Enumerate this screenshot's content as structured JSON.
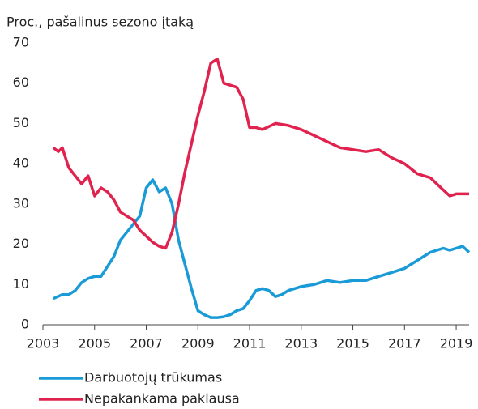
{
  "chart_data": {
    "type": "line",
    "title": "Proc., pašalinus sezono įtaką",
    "xlim": [
      2003,
      2019.5
    ],
    "xticks": [
      2003,
      2005,
      2007,
      2009,
      2011,
      2013,
      2015,
      2017,
      2019
    ],
    "ylim": [
      0,
      70
    ],
    "yticks": [
      0,
      10,
      20,
      30,
      40,
      50,
      60,
      70
    ],
    "grid": false,
    "legend": "bottom",
    "series": [
      {
        "name": "Darbuotojų trūkumas",
        "color": "#1a9ad6",
        "x": [
          2003.4,
          2003.75,
          2004,
          2004.25,
          2004.5,
          2004.75,
          2005,
          2005.25,
          2005.5,
          2005.75,
          2006,
          2006.25,
          2006.5,
          2006.75,
          2007,
          2007.25,
          2007.5,
          2007.75,
          2008,
          2008.25,
          2008.5,
          2008.75,
          2009,
          2009.25,
          2009.5,
          2009.75,
          2010,
          2010.25,
          2010.5,
          2010.75,
          2011,
          2011.25,
          2011.5,
          2011.75,
          2012,
          2012.25,
          2012.5,
          2012.75,
          2013,
          2013.5,
          2014,
          2014.5,
          2015,
          2015.5,
          2016,
          2016.5,
          2017,
          2017.5,
          2018,
          2018.25,
          2018.5,
          2018.75,
          2019,
          2019.25,
          2019.5
        ],
        "values": [
          6.5,
          7.5,
          7.5,
          8.5,
          10.5,
          11.5,
          12,
          12,
          14.5,
          17,
          21,
          23,
          25,
          27,
          34,
          36,
          33,
          34,
          30,
          21,
          15,
          9,
          3.5,
          2.5,
          1.8,
          1.8,
          2,
          2.5,
          3.5,
          4,
          6,
          8.5,
          9,
          8.5,
          7,
          7.5,
          8.5,
          9,
          9.5,
          10,
          11,
          10.5,
          11,
          11,
          12,
          13,
          14,
          16,
          18,
          18.5,
          19,
          18.5,
          19,
          19.5,
          18
        ]
      },
      {
        "name": "Nepakankama paklausa",
        "color": "#e0234e",
        "x": [
          2003.4,
          2003.6,
          2003.75,
          2004,
          2004.25,
          2004.5,
          2004.75,
          2005,
          2005.25,
          2005.5,
          2005.75,
          2006,
          2006.25,
          2006.5,
          2006.75,
          2007,
          2007.25,
          2007.5,
          2007.75,
          2008,
          2008.25,
          2008.5,
          2008.75,
          2009,
          2009.25,
          2009.5,
          2009.75,
          2010,
          2010.25,
          2010.5,
          2010.75,
          2011,
          2011.25,
          2011.5,
          2012,
          2012.5,
          2013,
          2013.5,
          2014,
          2014.5,
          2015,
          2015.5,
          2016,
          2016.5,
          2017,
          2017.5,
          2018,
          2018.5,
          2018.75,
          2019,
          2019.25,
          2019.5
        ],
        "values": [
          44,
          43,
          44,
          39,
          37,
          35,
          37,
          32,
          34,
          33,
          31,
          28,
          27,
          26,
          23.5,
          22,
          20.5,
          19.5,
          19,
          23,
          30,
          38,
          45,
          52,
          58,
          65,
          66,
          60,
          59.5,
          59,
          56,
          49,
          49,
          48.5,
          50,
          49.5,
          48.5,
          47,
          45.5,
          44,
          43.5,
          43,
          43.5,
          41.5,
          40,
          37.5,
          36.5,
          33.5,
          32,
          32.5,
          32.5,
          32.5
        ]
      }
    ]
  }
}
